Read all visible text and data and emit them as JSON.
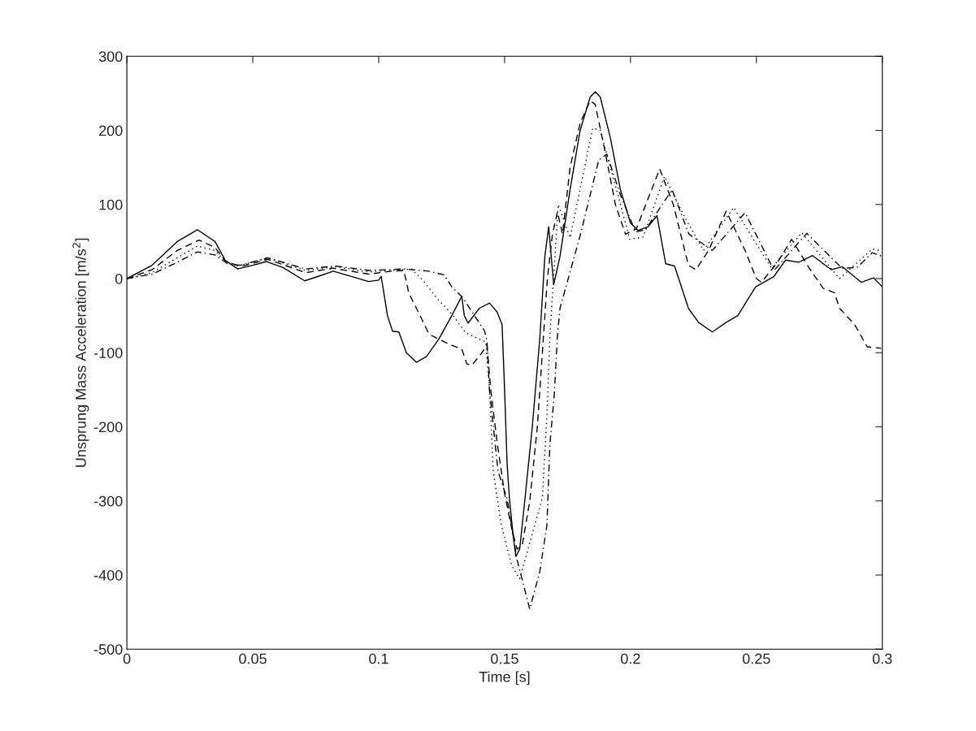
{
  "chart_data": {
    "type": "line",
    "xlabel": "Time [s]",
    "ylabel": "Unsprung Mass Acceleration [m/s$^{2}$]",
    "xlim": [
      0,
      0.3
    ],
    "xticks": [
      0,
      0.05,
      0.1,
      0.15,
      0.2,
      0.25,
      0.3
    ],
    "ylim": [
      -500,
      300
    ],
    "yticks": [
      -500,
      -400,
      -300,
      -200,
      -100,
      0,
      100,
      200,
      300
    ],
    "grid": false,
    "legend": false,
    "marker": "none",
    "series": [
      {
        "color": "#000000",
        "line_style": "solid",
        "x": [
          0,
          0.01,
          0.02,
          0.028,
          0.035,
          0.039,
          0.044,
          0.05,
          0.0555,
          0.062,
          0.0706,
          0.076,
          0.082,
          0.09,
          0.096,
          0.1,
          0.101,
          0.1035,
          0.1055,
          0.108,
          0.111,
          0.115,
          0.119,
          0.124,
          0.129,
          0.133,
          0.134,
          0.1355,
          0.14,
          0.144,
          0.147,
          0.149,
          0.15,
          0.151,
          0.152,
          0.1535,
          0.1545,
          0.156,
          0.158,
          0.161,
          0.164,
          0.166,
          0.1675,
          0.1695,
          0.172,
          0.176,
          0.18,
          0.184,
          0.186,
          0.188,
          0.192,
          0.196,
          0.2,
          0.203,
          0.207,
          0.2105,
          0.214,
          0.2175,
          0.223,
          0.227,
          0.2325,
          0.238,
          0.2426,
          0.2497,
          0.257,
          0.2616,
          0.2668,
          0.2723,
          0.2797,
          0.2842,
          0.2916,
          0.2965,
          0.2997
        ],
        "values": [
          0,
          18,
          50,
          66,
          50,
          25,
          13,
          18,
          23,
          15,
          -3,
          3,
          10,
          2,
          -4,
          -2,
          3,
          -50,
          -71,
          -72,
          -100,
          -113,
          -105,
          -81,
          -50,
          -24,
          -50,
          -60,
          -40,
          -33,
          -45,
          -62,
          -150,
          -250,
          -300,
          -350,
          -375,
          -365,
          -300,
          -200,
          -80,
          30,
          70,
          -8,
          30,
          120,
          200,
          245,
          252,
          245,
          190,
          120,
          75,
          65,
          70,
          85,
          20,
          17,
          -40,
          -59,
          -72,
          -59,
          -50,
          -11,
          3,
          25,
          22,
          31,
          12,
          16,
          -5,
          1,
          -10
        ]
      },
      {
        "color": "#000000",
        "line_style": "dashed",
        "x": [
          0,
          0.01,
          0.02,
          0.0287,
          0.035,
          0.039,
          0.045,
          0.056,
          0.071,
          0.082,
          0.096,
          0.105,
          0.11,
          0.112,
          0.115,
          0.12,
          0.124,
          0.129,
          0.133,
          0.135,
          0.137,
          0.141,
          0.143,
          0.1445,
          0.147,
          0.15,
          0.153,
          0.155,
          0.157,
          0.16,
          0.163,
          0.165,
          0.167,
          0.169,
          0.171,
          0.173,
          0.176,
          0.18,
          0.184,
          0.186,
          0.19,
          0.194,
          0.198,
          0.2023,
          0.2116,
          0.217,
          0.223,
          0.226,
          0.231,
          0.238,
          0.2455,
          0.25,
          0.252,
          0.2584,
          0.264,
          0.271,
          0.2765,
          0.281,
          0.283,
          0.289,
          0.294,
          0.2995
        ],
        "values": [
          0,
          12,
          38,
          52,
          42,
          24,
          16,
          26,
          8,
          14,
          6,
          10,
          11,
          -20,
          -40,
          -75,
          -82,
          -90,
          -95,
          -115,
          -117,
          -100,
          -90,
          -150,
          -220,
          -290,
          -340,
          -365,
          -360,
          -300,
          -200,
          -100,
          0,
          60,
          90,
          60,
          150,
          210,
          240,
          235,
          170,
          100,
          60,
          67,
          148,
          100,
          18,
          12,
          38,
          91,
          38,
          0,
          -5,
          22,
          53,
          14,
          -13,
          -19,
          -40,
          -62,
          -92,
          -94
        ]
      },
      {
        "color": "#000000",
        "line_style": "dotted",
        "x": [
          0,
          0.01,
          0.02,
          0.028,
          0.035,
          0.04,
          0.045,
          0.056,
          0.071,
          0.083,
          0.096,
          0.105,
          0.113,
          0.118,
          0.124,
          0.127,
          0.13,
          0.1345,
          0.14,
          0.1425,
          0.144,
          0.1455,
          0.1487,
          0.1529,
          0.156,
          0.165,
          0.1668,
          0.168,
          0.1713,
          0.176,
          0.185,
          0.188,
          0.195,
          0.1997,
          0.205,
          0.2135,
          0.222,
          0.229,
          0.241,
          0.256,
          0.268,
          0.283,
          0.296,
          0.3
        ],
        "values": [
          0,
          8,
          28,
          44,
          38,
          20,
          18,
          28,
          11,
          16,
          9,
          11,
          13,
          -4,
          -30,
          -40,
          -52,
          -73,
          -82,
          -85,
          -150,
          -260,
          -333,
          -388,
          -405,
          -296,
          -186,
          -77,
          100,
          55,
          203,
          200,
          113,
          53,
          56,
          138,
          80,
          38,
          96,
          14,
          62,
          0,
          40,
          37
        ]
      },
      {
        "color": "#000000",
        "line_style": "dashdot",
        "x": [
          0,
          0.01,
          0.02,
          0.028,
          0.035,
          0.04,
          0.045,
          0.056,
          0.071,
          0.083,
          0.096,
          0.11,
          0.12,
          0.126,
          0.129,
          0.1335,
          0.139,
          0.142,
          0.143,
          0.144,
          0.1474,
          0.151,
          0.155,
          0.16,
          0.164,
          0.1668,
          0.168,
          0.1697,
          0.171,
          0.172,
          0.18,
          0.1874,
          0.1906,
          0.196,
          0.202,
          0.206,
          0.2165,
          0.2232,
          0.2325,
          0.2455,
          0.257,
          0.27,
          0.284,
          0.29,
          0.296,
          0.3
        ],
        "values": [
          0,
          6,
          22,
          36,
          32,
          20,
          18,
          28,
          13,
          17,
          11,
          13,
          10,
          5,
          -11,
          -26,
          -55,
          -70,
          -84,
          -150,
          -260,
          -297,
          -380,
          -446,
          -395,
          -333,
          -223,
          -158,
          -77,
          -40,
          58,
          160,
          168,
          113,
          63,
          66,
          120,
          60,
          38,
          89,
          11,
          61,
          14,
          15,
          35,
          30
        ]
      }
    ]
  }
}
